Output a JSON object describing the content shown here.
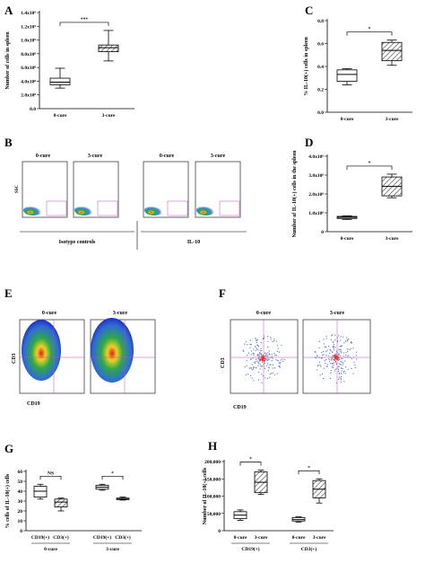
{
  "panels": {
    "A": "A",
    "B": "B",
    "C": "C",
    "D": "D",
    "E": "E",
    "F": "F",
    "G": "G",
    "H": "H"
  },
  "panel_b": {
    "flow_titles": [
      "0-cure",
      "3-cure",
      "0-cure",
      "3-cure"
    ],
    "ylabel": "SSC",
    "group_labels": [
      "Isotype controls",
      "IL-10"
    ]
  },
  "panel_e": {
    "titles": [
      "0-cure",
      "3-cure"
    ],
    "xlabel": "CD19",
    "ylabel": "CD3"
  },
  "panel_f": {
    "titles": [
      "0-cure",
      "3-cure"
    ],
    "xlabel": "CD19",
    "ylabel": "CD3"
  },
  "colors": {
    "hatch_box": "#555555",
    "flow_gate": "#cc44cc",
    "flow_dense": "#2ea84a",
    "flow_high": "#e02020"
  },
  "chart_data": [
    {
      "panel": "A",
      "type": "box",
      "categories": [
        "0-cure",
        "3-cure"
      ],
      "ylabel": "Number of cells in spleen",
      "yticks": [
        "0.0",
        "2.0x10⁸",
        "4.0x10⁸",
        "6.0x10⁸",
        "8.0x10⁸",
        "1.0x10⁹",
        "1.2x10⁹",
        "1.4x10⁹"
      ],
      "ylim": [
        0,
        1450000000.0
      ],
      "boxes": [
        {
          "min": 310000000.0,
          "q1": 360000000.0,
          "median": 400000000.0,
          "q3": 460000000.0,
          "max": 610000000.0,
          "hatched": false
        },
        {
          "min": 720000000.0,
          "q1": 860000000.0,
          "median": 920000000.0,
          "q3": 960000000.0,
          "max": 1180000000.0,
          "hatched": true
        }
      ],
      "significance": [
        {
          "from": 0,
          "to": 1,
          "label": "***"
        }
      ]
    },
    {
      "panel": "C",
      "type": "box",
      "categories": [
        "0-cure",
        "3-cure"
      ],
      "ylabel": "% IL-10(+) cells in spleen",
      "yticks": [
        "0.0",
        "0.2",
        "0.4",
        "0.6",
        "0.8"
      ],
      "ylim": [
        0,
        0.8
      ],
      "boxes": [
        {
          "min": 0.24,
          "q1": 0.27,
          "median": 0.33,
          "q3": 0.37,
          "max": 0.38,
          "hatched": false
        },
        {
          "min": 0.41,
          "q1": 0.45,
          "median": 0.54,
          "q3": 0.61,
          "max": 0.63,
          "hatched": true
        }
      ],
      "significance": [
        {
          "from": 0,
          "to": 1,
          "label": "*"
        }
      ]
    },
    {
      "panel": "D",
      "type": "box",
      "categories": [
        "0-cure",
        "3-cure"
      ],
      "ylabel": "Number of IL-10(+) cells in the spleen",
      "yticks": [
        "0",
        "1.0x10⁶",
        "2.0x10⁶",
        "3.0x10⁶",
        "4.0x10⁶"
      ],
      "ylim": [
        0,
        4000000.0
      ],
      "boxes": [
        {
          "min": 650000.0,
          "q1": 700000.0,
          "median": 760000.0,
          "q3": 810000.0,
          "max": 840000.0,
          "hatched": false
        },
        {
          "min": 1800000.0,
          "q1": 1900000.0,
          "median": 2400000.0,
          "q3": 2900000.0,
          "max": 3050000.0,
          "hatched": true
        }
      ],
      "significance": [
        {
          "from": 0,
          "to": 1,
          "label": "*"
        }
      ]
    },
    {
      "panel": "G",
      "type": "box",
      "categories": [
        "CD19(+)",
        "CD3(+)",
        "CD19(+)",
        "CD3(+)"
      ],
      "groups": [
        "0-cure",
        "3-cure"
      ],
      "ylabel": "% cells of IL-10(+) cells",
      "yticks": [
        "0",
        "10",
        "20",
        "30",
        "40",
        "50",
        "60"
      ],
      "ylim": [
        0,
        60
      ],
      "boxes": [
        {
          "min": 32,
          "q1": 34,
          "median": 40,
          "q3": 45,
          "max": 47,
          "hatched": false
        },
        {
          "min": 20,
          "q1": 24,
          "median": 29,
          "q3": 32,
          "max": 33,
          "hatched": true
        },
        {
          "min": 41,
          "q1": 42,
          "median": 44,
          "q3": 46,
          "max": 47,
          "hatched": false
        },
        {
          "min": 31,
          "q1": 31.5,
          "median": 32,
          "q3": 33,
          "max": 34,
          "hatched": true
        }
      ],
      "significance": [
        {
          "from": 0,
          "to": 1,
          "label": "NS"
        },
        {
          "from": 2,
          "to": 3,
          "label": "*"
        }
      ]
    },
    {
      "panel": "H",
      "type": "box",
      "categories": [
        "0-cure",
        "3-cure",
        "0-cure",
        "3-cure"
      ],
      "groups": [
        "CD19(+)",
        "CD3(+)"
      ],
      "ylabel": "Number of IL-10(+) cells",
      "yticks": [
        "0",
        "50,000",
        "100,000",
        "150,000",
        "200,000"
      ],
      "ylim": [
        0,
        200000
      ],
      "boxes": [
        {
          "min": 30000,
          "q1": 35000,
          "median": 45000,
          "q3": 55000,
          "max": 60000,
          "hatched": false
        },
        {
          "min": 105000,
          "q1": 110000,
          "median": 140000,
          "q3": 170000,
          "max": 175000,
          "hatched": true
        },
        {
          "min": 25000,
          "q1": 28000,
          "median": 32000,
          "q3": 38000,
          "max": 40000,
          "hatched": false
        },
        {
          "min": 80000,
          "q1": 95000,
          "median": 120000,
          "q3": 145000,
          "max": 150000,
          "hatched": true
        }
      ],
      "significance": [
        {
          "from": 0,
          "to": 1,
          "label": "*"
        },
        {
          "from": 2,
          "to": 3,
          "label": "*"
        }
      ]
    }
  ]
}
